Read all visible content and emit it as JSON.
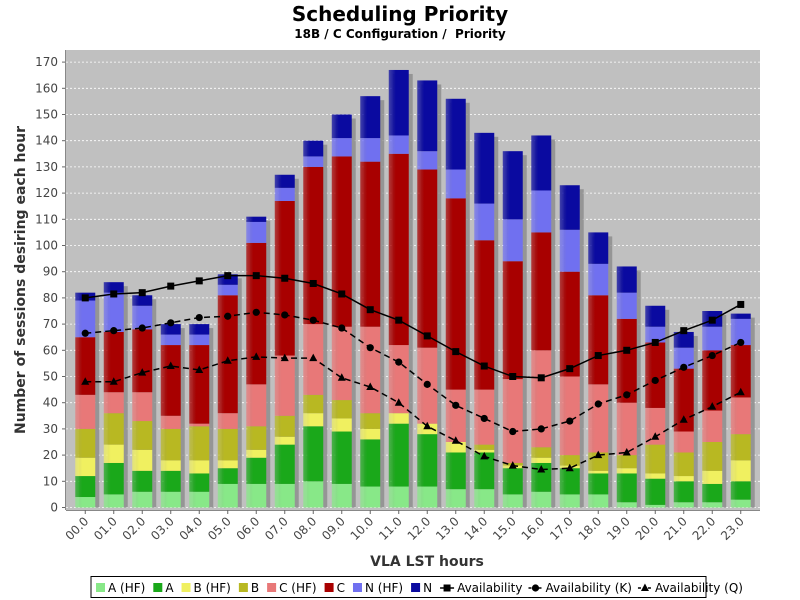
{
  "chart_data": {
    "type": "bar",
    "title": "Scheduling Priority",
    "subtitle": "18B / C Configuration /  Priority",
    "xlabel": "VLA LST hours",
    "ylabel": "Number of sessions desiring each hour",
    "ylim": [
      0,
      175
    ],
    "yticks": [
      0,
      10,
      20,
      30,
      40,
      50,
      60,
      70,
      80,
      90,
      100,
      110,
      120,
      130,
      140,
      150,
      160,
      170
    ],
    "categories": [
      "00.0",
      "01.0",
      "02.0",
      "03.0",
      "04.0",
      "05.0",
      "06.0",
      "07.0",
      "08.0",
      "09.0",
      "10.0",
      "11.0",
      "12.0",
      "13.0",
      "14.0",
      "15.0",
      "16.0",
      "17.0",
      "18.0",
      "19.0",
      "20.0",
      "21.0",
      "22.0",
      "23.0"
    ],
    "stacking": "cumulative",
    "series": [
      {
        "name": "A (HF)",
        "color": "#88e888",
        "values": [
          4,
          5,
          6,
          6,
          6,
          9,
          9,
          9,
          10,
          9,
          8,
          8,
          8,
          7,
          7,
          5,
          6,
          5,
          5,
          2,
          1,
          2,
          2,
          3
        ]
      },
      {
        "name": "A",
        "color": "#1aa81a",
        "values": [
          8,
          12,
          8,
          8,
          7,
          6,
          10,
          15,
          21,
          20,
          18,
          24,
          20,
          14,
          14,
          10,
          11,
          10,
          8,
          11,
          10,
          8,
          7,
          7
        ]
      },
      {
        "name": "B (HF)",
        "color": "#f0f060",
        "values": [
          7,
          7,
          8,
          4,
          5,
          3,
          3,
          3,
          5,
          5,
          4,
          4,
          4,
          4,
          1,
          1,
          2,
          1,
          1,
          2,
          2,
          2,
          5,
          8
        ]
      },
      {
        "name": "B",
        "color": "#b8b822",
        "values": [
          11,
          12,
          11,
          12,
          13,
          12,
          9,
          8,
          7,
          7,
          6,
          0,
          0,
          0,
          2,
          1,
          4,
          4,
          7,
          5,
          11,
          9,
          11,
          10
        ]
      },
      {
        "name": "C (HF)",
        "color": "#e87878",
        "values": [
          13,
          8,
          11,
          5,
          1,
          6,
          16,
          23,
          27,
          28,
          33,
          26,
          29,
          20,
          21,
          32,
          37,
          30,
          26,
          20,
          14,
          8,
          12,
          14
        ]
      },
      {
        "name": "C",
        "color": "#a80000",
        "values": [
          22,
          23,
          24,
          27,
          30,
          45,
          54,
          59,
          60,
          65,
          63,
          73,
          68,
          73,
          57,
          45,
          45,
          40,
          34,
          32,
          25,
          24,
          23,
          20
        ]
      },
      {
        "name": "N (HF)",
        "color": "#7070f0",
        "values": [
          14,
          15,
          9,
          4,
          4,
          4,
          8,
          5,
          4,
          7,
          9,
          7,
          7,
          11,
          14,
          16,
          16,
          16,
          12,
          10,
          6,
          8,
          9,
          10
        ]
      },
      {
        "name": "N",
        "color": "#0a0aa0",
        "values": [
          3,
          4,
          4,
          4,
          4,
          4,
          2,
          5,
          6,
          9,
          16,
          25,
          27,
          27,
          27,
          26,
          21,
          17,
          12,
          10,
          8,
          6,
          6,
          2
        ]
      }
    ],
    "lines": [
      {
        "name": "Availability",
        "marker": "square",
        "dash": "solid",
        "values": [
          80,
          81.5,
          82,
          84.5,
          86.5,
          88.5,
          88.5,
          87.5,
          85.5,
          81.5,
          75.5,
          71.5,
          65.5,
          59.5,
          54,
          50,
          49.5,
          53,
          58,
          60,
          63,
          67.5,
          71.5,
          77.5
        ]
      },
      {
        "name": "Availability (K)",
        "marker": "circle",
        "dash": "dashed",
        "values": [
          66.5,
          67.5,
          68.5,
          70.5,
          72.5,
          73,
          74.5,
          73.5,
          71.5,
          68.5,
          61,
          55.5,
          47,
          39,
          34,
          29,
          30,
          33,
          39.5,
          43,
          48.5,
          53.5,
          58,
          63
        ]
      },
      {
        "name": "Availability (Q)",
        "marker": "triangle",
        "dash": "dashed",
        "values": [
          48,
          48,
          51.5,
          54,
          52.5,
          56,
          57.5,
          57,
          57,
          49.5,
          46,
          40,
          31,
          25.5,
          19.5,
          16,
          14.5,
          15,
          20,
          21,
          27,
          33.5,
          38.5,
          44
        ]
      }
    ],
    "legend": "bottom"
  }
}
